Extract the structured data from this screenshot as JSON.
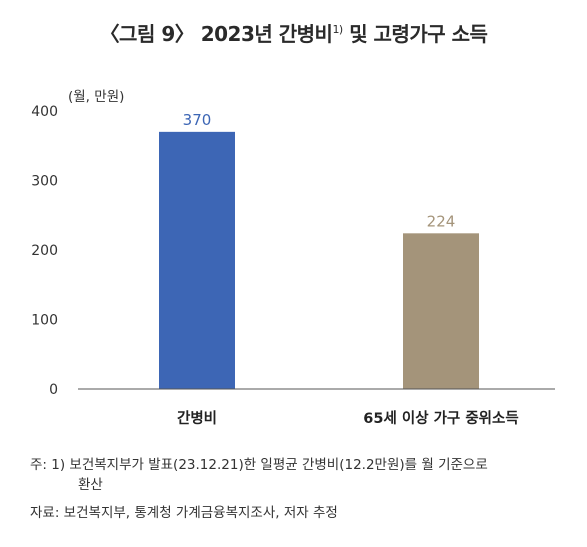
{
  "title": {
    "main_before": "〈그림 9〉 2023년 간병비",
    "sup": "1)",
    "main_after": " 및 고령가구 소득"
  },
  "chart_data": {
    "type": "bar",
    "unit_label": "(월, 만원)",
    "categories": [
      "간병비",
      "65세 이상 가구 중위소득"
    ],
    "values": [
      370,
      224
    ],
    "value_labels": [
      "370",
      "224"
    ],
    "colors": [
      "#3d66b5",
      "#a4947a"
    ],
    "ylim": [
      0,
      400
    ],
    "yticks": [
      0,
      100,
      200,
      300,
      400
    ],
    "grid": false
  },
  "notes": {
    "note_line1": "주: 1) 보건복지부가 발표(23.12.21)한 일평균 간병비(12.2만원)를 월 기준으로",
    "note_line2": "환산",
    "source": "자료: 보건복지부, 통계청 가계금융복지조사, 저자 추정"
  }
}
